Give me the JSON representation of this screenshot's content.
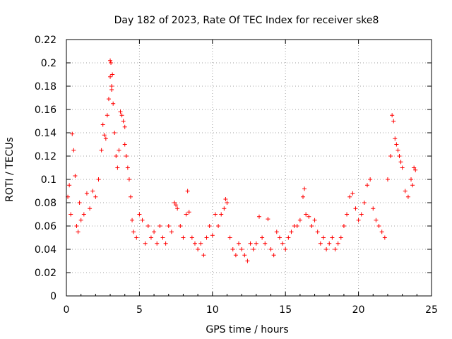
{
  "chart_data": {
    "type": "scatter",
    "title": "Day 182 of 2023, Rate Of TEC Index for receiver ske8",
    "xlabel": "GPS time / hours",
    "ylabel": "ROTI / TECUs",
    "xlim": [
      0,
      25
    ],
    "ylim": [
      0,
      0.22
    ],
    "xticks": [
      0,
      5,
      10,
      15,
      20,
      25
    ],
    "xtick_labels": [
      "0",
      "5",
      "10",
      "15",
      "20",
      "25"
    ],
    "yticks": [
      0,
      0.02,
      0.04,
      0.06,
      0.08,
      0.1,
      0.12,
      0.14,
      0.16,
      0.18,
      0.2,
      0.22
    ],
    "ytick_labels": [
      "0",
      "0.02",
      "0.04",
      "0.06",
      "0.08",
      "0.1",
      "0.12",
      "0.14",
      "0.16",
      "0.18",
      "0.2",
      "0.22"
    ],
    "grid": true,
    "marker": "plus",
    "color": "#ff0000",
    "series": [
      {
        "name": "ROTI",
        "x": [
          0.1,
          0.2,
          0.3,
          0.4,
          0.5,
          0.6,
          0.7,
          0.8,
          0.9,
          1.0,
          1.2,
          1.4,
          1.6,
          1.8,
          2.0,
          2.2,
          2.4,
          2.5,
          2.6,
          2.7,
          2.8,
          2.9,
          3.0,
          3.0,
          3.05,
          3.1,
          3.1,
          3.15,
          3.2,
          3.3,
          3.4,
          3.5,
          3.6,
          3.7,
          3.8,
          3.9,
          4.0,
          4.0,
          4.1,
          4.2,
          4.3,
          4.4,
          4.5,
          4.6,
          4.8,
          5.0,
          5.2,
          5.4,
          5.6,
          5.8,
          6.0,
          6.2,
          6.4,
          6.6,
          6.8,
          7.0,
          7.2,
          7.4,
          7.5,
          7.6,
          7.8,
          8.0,
          8.2,
          8.3,
          8.4,
          8.6,
          8.8,
          9.0,
          9.2,
          9.4,
          9.6,
          9.8,
          10.0,
          10.2,
          10.4,
          10.6,
          10.8,
          10.9,
          11.0,
          11.2,
          11.4,
          11.6,
          11.8,
          12.0,
          12.2,
          12.4,
          12.6,
          12.8,
          13.0,
          13.2,
          13.4,
          13.6,
          13.8,
          14.0,
          14.2,
          14.4,
          14.6,
          14.8,
          15.0,
          15.2,
          15.4,
          15.6,
          15.8,
          16.0,
          16.2,
          16.3,
          16.4,
          16.6,
          16.8,
          17.0,
          17.2,
          17.4,
          17.6,
          17.8,
          18.0,
          18.2,
          18.4,
          18.6,
          18.8,
          19.0,
          19.2,
          19.4,
          19.6,
          19.8,
          20.0,
          20.2,
          20.4,
          20.6,
          20.8,
          21.0,
          21.2,
          21.4,
          21.6,
          21.8,
          22.0,
          22.2,
          22.3,
          22.4,
          22.5,
          22.6,
          22.7,
          22.8,
          22.9,
          23.0,
          23.2,
          23.4,
          23.6,
          23.7,
          23.8,
          23.9
        ],
        "y": [
          0.085,
          0.095,
          0.07,
          0.139,
          0.125,
          0.103,
          0.06,
          0.055,
          0.08,
          0.065,
          0.07,
          0.088,
          0.075,
          0.09,
          0.085,
          0.1,
          0.125,
          0.147,
          0.138,
          0.135,
          0.155,
          0.169,
          0.188,
          0.202,
          0.2,
          0.18,
          0.177,
          0.19,
          0.165,
          0.14,
          0.12,
          0.11,
          0.125,
          0.158,
          0.155,
          0.15,
          0.145,
          0.13,
          0.12,
          0.11,
          0.1,
          0.085,
          0.065,
          0.055,
          0.05,
          0.07,
          0.065,
          0.045,
          0.06,
          0.05,
          0.055,
          0.045,
          0.06,
          0.05,
          0.045,
          0.06,
          0.055,
          0.08,
          0.078,
          0.075,
          0.06,
          0.05,
          0.07,
          0.09,
          0.072,
          0.05,
          0.045,
          0.04,
          0.045,
          0.035,
          0.05,
          0.06,
          0.052,
          0.07,
          0.06,
          0.07,
          0.075,
          0.083,
          0.08,
          0.05,
          0.04,
          0.035,
          0.045,
          0.04,
          0.035,
          0.03,
          0.045,
          0.04,
          0.045,
          0.068,
          0.05,
          0.045,
          0.066,
          0.04,
          0.035,
          0.055,
          0.05,
          0.045,
          0.04,
          0.05,
          0.055,
          0.06,
          0.06,
          0.065,
          0.085,
          0.092,
          0.07,
          0.068,
          0.06,
          0.065,
          0.055,
          0.045,
          0.05,
          0.04,
          0.045,
          0.05,
          0.04,
          0.045,
          0.05,
          0.06,
          0.07,
          0.085,
          0.088,
          0.075,
          0.065,
          0.07,
          0.08,
          0.095,
          0.1,
          0.075,
          0.065,
          0.06,
          0.055,
          0.05,
          0.1,
          0.12,
          0.155,
          0.15,
          0.135,
          0.13,
          0.125,
          0.12,
          0.115,
          0.11,
          0.09,
          0.085,
          0.1,
          0.095,
          0.11,
          0.108
        ]
      }
    ]
  }
}
